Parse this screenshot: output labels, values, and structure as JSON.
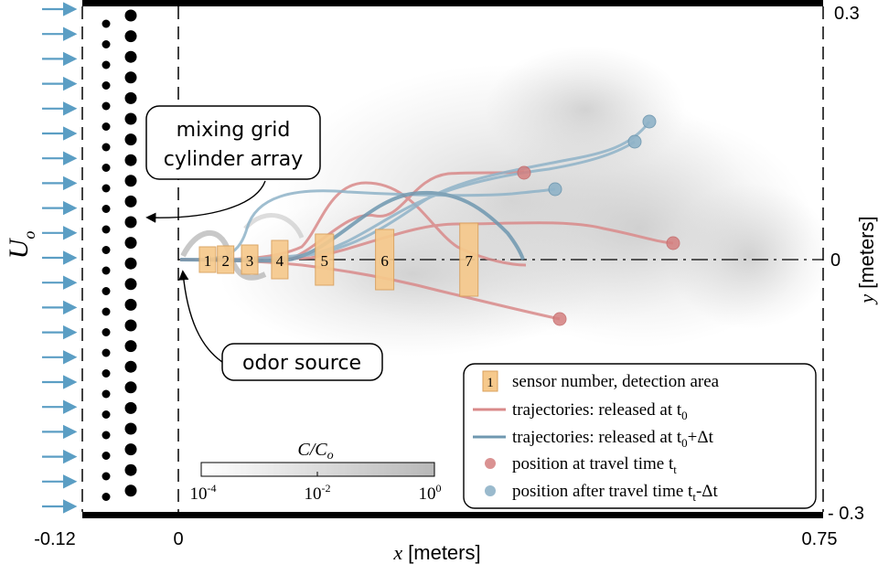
{
  "axes": {
    "x_label_var": "x",
    "x_label_unit": "[meters]",
    "y_label_var": "y",
    "y_label_unit": "[meters]",
    "x_ticks": [
      "-0.12",
      "0",
      "0.75"
    ],
    "y_ticks": [
      "0.3",
      "0",
      "- 0.3"
    ],
    "inflow_label": "U",
    "inflow_label_sub": "o"
  },
  "callouts": {
    "mixing_grid_line1": "mixing grid",
    "mixing_grid_line2": "cylinder array",
    "odor_source": "odor source"
  },
  "sensors": [
    {
      "label": "1",
      "x": 0.034
    },
    {
      "label": "2",
      "x": 0.055
    },
    {
      "label": "3",
      "x": 0.083
    },
    {
      "label": "4",
      "x": 0.118
    },
    {
      "label": "5",
      "x": 0.17
    },
    {
      "label": "6",
      "x": 0.24
    },
    {
      "label": "7",
      "x": 0.338
    }
  ],
  "colorbar": {
    "title": "C/C",
    "title_sub": "o",
    "ticks": [
      {
        "base": "10",
        "exp": "-4"
      },
      {
        "base": "10",
        "exp": "-2"
      },
      {
        "base": "10",
        "exp": "0"
      }
    ]
  },
  "legend": {
    "sensor_box_label": "1",
    "sensor": "sensor number, detection area",
    "traj_t0": "trajectories: released at t",
    "traj_t0_sub": "0",
    "traj_dt": "trajectories: released at t",
    "traj_dt_sub": "0",
    "traj_dt_suffix": "+Δt",
    "pos_t": "position at travel time t",
    "pos_t_sub": "t",
    "pos_dt": "position after travel time t",
    "pos_dt_sub": "t",
    "pos_dt_suffix": "-Δt"
  },
  "colors": {
    "red_trajectory": "#d98a8a",
    "blue_trajectory": "#8fb3c8",
    "red_dot": "#d47f7f",
    "blue_dot": "#7fa6ba",
    "sensor_fill": "#f6c98c",
    "sensor_stroke": "#d9a05c",
    "arrow": "#5b9ec4"
  }
}
